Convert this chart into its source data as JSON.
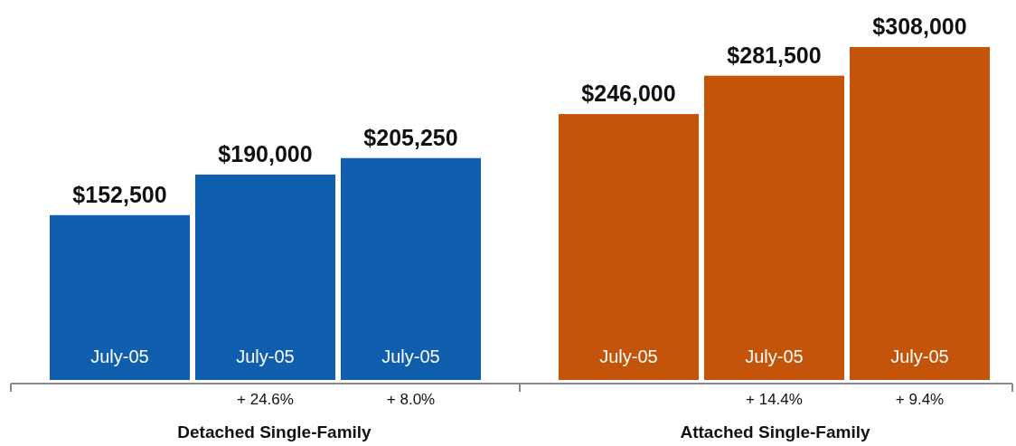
{
  "chart_data": [
    {
      "type": "bar",
      "xlabel": "Detached Single-Family",
      "categories": [
        "July-05",
        "July-05",
        "July-05"
      ],
      "values": [
        152500,
        190000,
        205250
      ],
      "color": "#105eae",
      "value_labels": [
        "$152,500",
        "$190,000",
        "$205,250"
      ],
      "annotations": [
        "+ 24.6%",
        "+ 8.0%"
      ]
    },
    {
      "type": "bar",
      "xlabel": "Attached Single-Family",
      "categories": [
        "July-05",
        "July-05",
        "July-05"
      ],
      "values": [
        246000,
        281500,
        308000
      ],
      "color": "#c4540a",
      "value_labels": [
        "$246,000",
        "$281,500",
        "$308,000"
      ],
      "annotations": [
        "+ 14.4%",
        "+ 9.4%"
      ]
    }
  ]
}
